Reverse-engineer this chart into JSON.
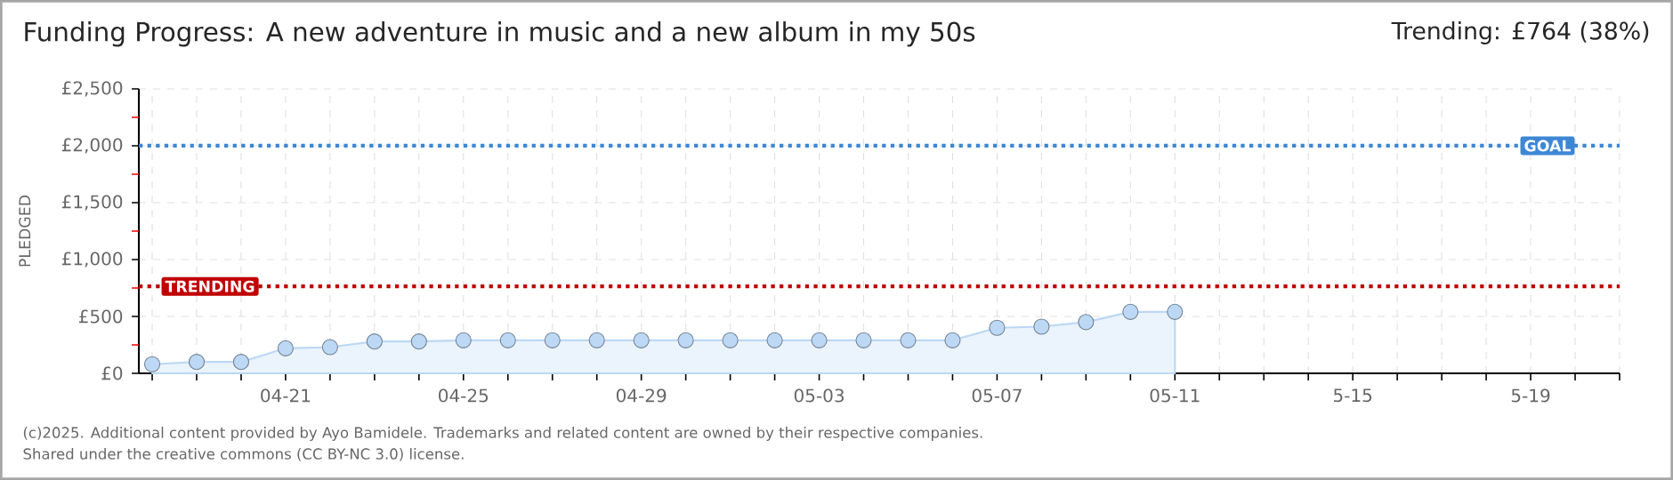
{
  "chart_data": {
    "type": "area",
    "title": "Funding Progress: A new adventure in music and a new album in my 50s",
    "ylabel": "PLEDGED",
    "categories": [
      null,
      null,
      null,
      "04-21",
      null,
      null,
      null,
      "04-25",
      null,
      null,
      null,
      "04-29",
      null,
      null,
      null,
      "05-03",
      null,
      null,
      null,
      "05-07",
      null,
      null,
      null,
      "05-11",
      null,
      null,
      null,
      "5-15",
      null,
      null,
      null,
      "5-19",
      null,
      null
    ],
    "series": [
      {
        "color": "#bcd8f5",
        "values": [
          80,
          100,
          100,
          220,
          230,
          280,
          280,
          290,
          290,
          290,
          290,
          290,
          290,
          290,
          290,
          290,
          290,
          290,
          290,
          400,
          410,
          450,
          540,
          540,
          null,
          null,
          null,
          null,
          null,
          null,
          null,
          null,
          null,
          null
        ]
      }
    ],
    "ylim": [
      0,
      2500
    ],
    "yticks": [
      {
        "value": 0,
        "label": "£0"
      },
      {
        "value": 250,
        "label": null
      },
      {
        "value": 500,
        "label": "£500"
      },
      {
        "value": 750,
        "label": null
      },
      {
        "value": 1000,
        "label": "£1,000"
      },
      {
        "value": 1250,
        "label": null
      },
      {
        "value": 1500,
        "label": "£1,500"
      },
      {
        "value": 1750,
        "label": null
      },
      {
        "value": 2000,
        "label": "£2,000"
      },
      {
        "value": 2250,
        "label": null
      },
      {
        "value": 2500,
        "label": "£2,500"
      }
    ],
    "grid": true,
    "marker": "circle",
    "ref_lines": [
      {
        "axis": "y",
        "value": 2000,
        "label": "GOAL",
        "color": "#3d87d5",
        "line_style": "dotted"
      },
      {
        "axis": "y",
        "value": 764,
        "label": "TRENDING",
        "color": "#c00000",
        "line_style": "dotted"
      }
    ],
    "annotations": [
      "Trending: £764 (38%)",
      "(c)2025. Additional content provided by Ayo Bamidele. Trademarks and related content are owned by their respective companies.",
      "Shared under the creative commons (CC BY-NC 3.0) license."
    ]
  }
}
